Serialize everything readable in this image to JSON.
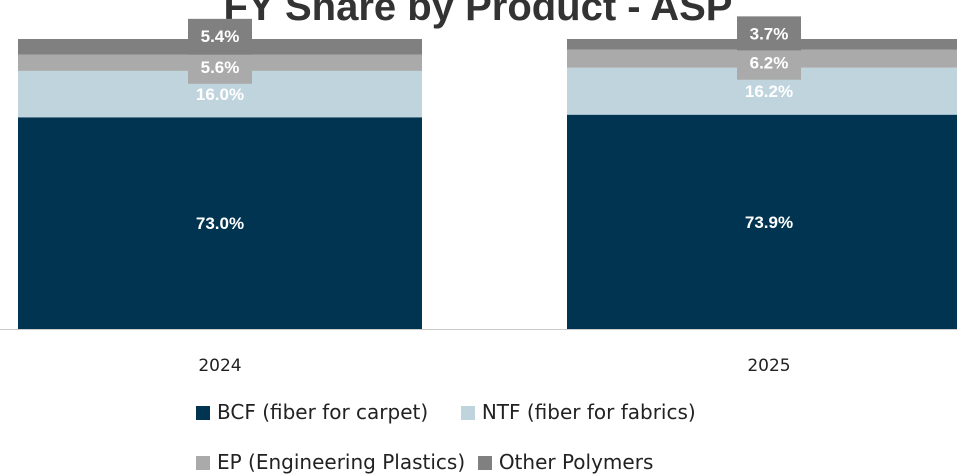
{
  "chart_data": {
    "type": "bar",
    "stacked": true,
    "title": "FY Share by Product  - ASP",
    "categories": [
      "2024",
      "2025"
    ],
    "series": [
      {
        "name": "BCF (fiber for carpet)",
        "color": "#003450",
        "values": [
          73.0,
          73.9
        ],
        "labels": [
          "73.0%",
          "73.9%"
        ]
      },
      {
        "name": "NTF (fiber for fabrics)",
        "color": "#bfd4dd",
        "values": [
          16.0,
          16.2
        ],
        "labels": [
          "16.0%",
          "16.2%"
        ]
      },
      {
        "name": "EP (Engineering Plastics)",
        "color": "#aaaaaa",
        "values": [
          5.6,
          6.2
        ],
        "labels": [
          "5.6%",
          "6.2%"
        ]
      },
      {
        "name": "Other Polymers",
        "color": "#808080",
        "values": [
          5.4,
          3.7
        ],
        "labels": [
          "5.4%",
          "3.7%"
        ]
      }
    ],
    "ylim": [
      0,
      100
    ],
    "grid": false,
    "legend": "bottom"
  }
}
